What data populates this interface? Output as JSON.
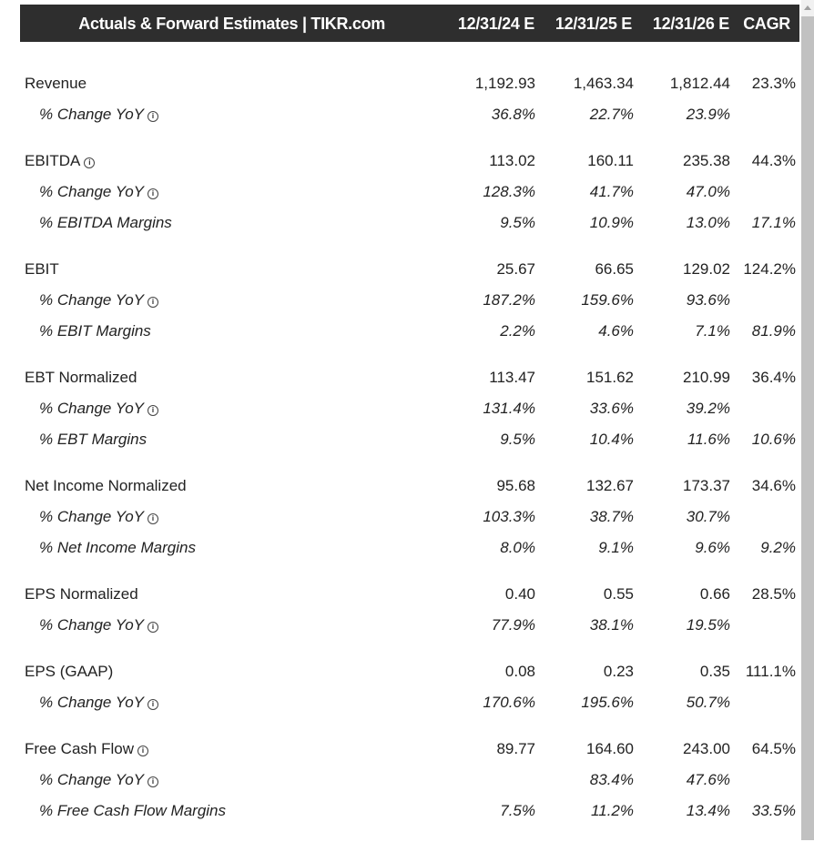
{
  "header": {
    "title": "Actuals & Forward Estimates | TIKR.com",
    "columns": [
      "12/31/24 E",
      "12/31/25 E",
      "12/31/26 E",
      "CAGR"
    ]
  },
  "groups": [
    {
      "rows": [
        {
          "label": "Revenue",
          "info": false,
          "values": [
            "1,192.93",
            "1,463.34",
            "1,812.44",
            "23.3%"
          ]
        },
        {
          "label": "% Change YoY",
          "info": true,
          "sub": true,
          "values": [
            "36.8%",
            "22.7%",
            "23.9%",
            ""
          ]
        }
      ]
    },
    {
      "rows": [
        {
          "label": "EBITDA",
          "info": true,
          "values": [
            "113.02",
            "160.11",
            "235.38",
            "44.3%"
          ]
        },
        {
          "label": "% Change YoY",
          "info": true,
          "sub": true,
          "values": [
            "128.3%",
            "41.7%",
            "47.0%",
            ""
          ]
        },
        {
          "label": "% EBITDA Margins",
          "info": false,
          "sub": true,
          "values": [
            "9.5%",
            "10.9%",
            "13.0%",
            "17.1%"
          ]
        }
      ]
    },
    {
      "rows": [
        {
          "label": "EBIT",
          "info": false,
          "values": [
            "25.67",
            "66.65",
            "129.02",
            "124.2%"
          ]
        },
        {
          "label": "% Change YoY",
          "info": true,
          "sub": true,
          "values": [
            "187.2%",
            "159.6%",
            "93.6%",
            ""
          ]
        },
        {
          "label": "% EBIT Margins",
          "info": false,
          "sub": true,
          "values": [
            "2.2%",
            "4.6%",
            "7.1%",
            "81.9%"
          ]
        }
      ]
    },
    {
      "rows": [
        {
          "label": "EBT Normalized",
          "info": false,
          "values": [
            "113.47",
            "151.62",
            "210.99",
            "36.4%"
          ]
        },
        {
          "label": "% Change YoY",
          "info": true,
          "sub": true,
          "values": [
            "131.4%",
            "33.6%",
            "39.2%",
            ""
          ]
        },
        {
          "label": "% EBT Margins",
          "info": false,
          "sub": true,
          "values": [
            "9.5%",
            "10.4%",
            "11.6%",
            "10.6%"
          ]
        }
      ]
    },
    {
      "rows": [
        {
          "label": "Net Income Normalized",
          "info": false,
          "values": [
            "95.68",
            "132.67",
            "173.37",
            "34.6%"
          ]
        },
        {
          "label": "% Change YoY",
          "info": true,
          "sub": true,
          "values": [
            "103.3%",
            "38.7%",
            "30.7%",
            ""
          ]
        },
        {
          "label": "% Net Income Margins",
          "info": false,
          "sub": true,
          "values": [
            "8.0%",
            "9.1%",
            "9.6%",
            "9.2%"
          ]
        }
      ]
    },
    {
      "rows": [
        {
          "label": "EPS Normalized",
          "info": false,
          "values": [
            "0.40",
            "0.55",
            "0.66",
            "28.5%"
          ]
        },
        {
          "label": "% Change YoY",
          "info": true,
          "sub": true,
          "values": [
            "77.9%",
            "38.1%",
            "19.5%",
            ""
          ]
        }
      ]
    },
    {
      "rows": [
        {
          "label": "EPS (GAAP)",
          "info": false,
          "values": [
            "0.08",
            "0.23",
            "0.35",
            "111.1%"
          ]
        },
        {
          "label": "% Change YoY",
          "info": true,
          "sub": true,
          "values": [
            "170.6%",
            "195.6%",
            "50.7%",
            ""
          ]
        }
      ]
    },
    {
      "rows": [
        {
          "label": "Free Cash Flow",
          "info": true,
          "values": [
            "89.77",
            "164.60",
            "243.00",
            "64.5%"
          ]
        },
        {
          "label": "% Change YoY",
          "info": true,
          "sub": true,
          "values": [
            "",
            "83.4%",
            "47.6%",
            ""
          ]
        },
        {
          "label": "% Free Cash Flow Margins",
          "info": false,
          "sub": true,
          "values": [
            "7.5%",
            "11.2%",
            "13.4%",
            "33.5%"
          ]
        }
      ]
    }
  ],
  "info_glyph": "i"
}
